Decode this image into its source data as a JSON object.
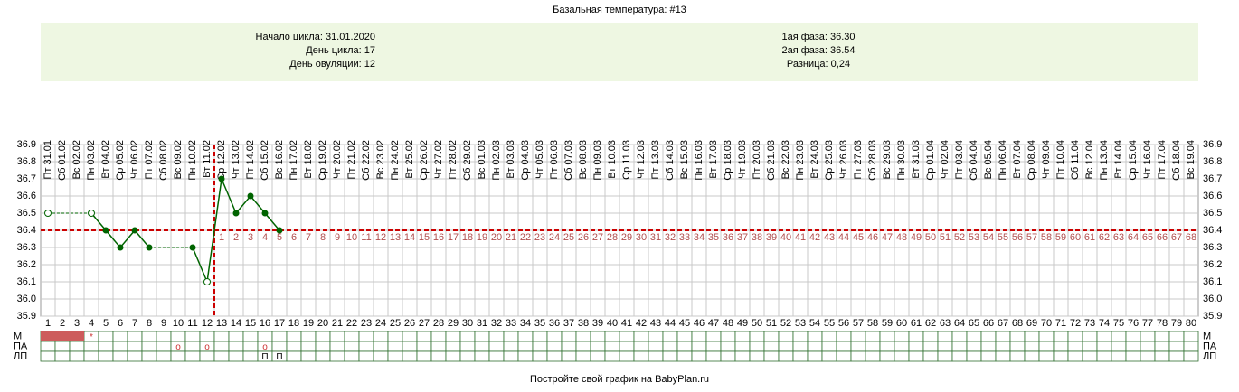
{
  "chart_data": {
    "type": "line",
    "title": "Базальная температура: #13",
    "info_left": [
      "Начало цикла: 31.01.2020",
      "День цикла: 17",
      "День овуляции: 12"
    ],
    "info_right": [
      "1ая фаза: 36.30",
      "2ая фаза: 36.54",
      "Разница: 0,24"
    ],
    "categories": [
      "Пт 31.01",
      "Сб 01.02",
      "Вс 02.02",
      "Пн 03.02",
      "Вт 04.02",
      "Ср 05.02",
      "Чт 06.02",
      "Пт 07.02",
      "Сб 08.02",
      "Вс 09.02",
      "Пн 10.02",
      "Вт 11.02",
      "Ср 12.02",
      "Чт 13.02",
      "Пт 14.02",
      "Сб 15.02",
      "Вс 16.02",
      "Пн 17.02",
      "Вт 18.02",
      "Ср 19.02",
      "Чт 20.02",
      "Пт 21.02",
      "Сб 22.02",
      "Вс 23.02",
      "Пн 24.02",
      "Вт 25.02",
      "Ср 26.02",
      "Чт 27.02",
      "Пт 28.02",
      "Сб 29.02",
      "Вс 01.03",
      "Пн 02.03",
      "Вт 03.03",
      "Ср 04.03",
      "Чт 05.03",
      "Пт 06.03",
      "Сб 07.03",
      "Вс 08.03",
      "Пн 09.03",
      "Вт 10.03",
      "Ср 11.03",
      "Чт 12.03",
      "Пт 13.03",
      "Сб 14.03",
      "Вс 15.03",
      "Пн 16.03",
      "Вт 17.03",
      "Ср 18.03",
      "Чт 19.03",
      "Пт 20.03",
      "Сб 21.03",
      "Вс 22.03",
      "Пн 23.03",
      "Вт 24.03",
      "Ср 25.03",
      "Чт 26.03",
      "Пт 27.03",
      "Сб 28.03",
      "Вс 29.03",
      "Пн 30.03",
      "Вт 31.03",
      "Ср 01.04",
      "Чт 02.04",
      "Пт 03.04",
      "Сб 04.04",
      "Вс 05.04",
      "Пн 06.04",
      "Вт 07.04",
      "Ср 08.04",
      "Чт 09.04",
      "Пт 10.04",
      "Сб 11.04",
      "Вс 12.04",
      "Пн 13.04",
      "Вт 14.04",
      "Ср 15.04",
      "Чт 16.04",
      "Пт 17.04",
      "Сб 18.04",
      "Вс 19.04"
    ],
    "x": [
      1,
      2,
      3,
      4,
      5,
      6,
      7,
      8,
      9,
      10,
      11,
      12,
      13,
      14,
      15,
      16,
      17,
      18,
      19,
      20,
      21,
      22,
      23,
      24,
      25,
      26,
      27,
      28,
      29,
      30,
      31,
      32,
      33,
      34,
      35,
      36,
      37,
      38,
      39,
      40,
      41,
      42,
      43,
      44,
      45,
      46,
      47,
      48,
      49,
      50,
      51,
      52,
      53,
      54,
      55,
      56,
      57,
      58,
      59,
      60,
      61,
      62,
      63,
      64,
      65,
      66,
      67,
      68,
      69,
      70,
      71,
      72,
      73,
      74,
      75,
      76,
      77,
      78,
      79,
      80
    ],
    "values": [
      36.5,
      null,
      null,
      36.5,
      36.4,
      36.3,
      36.4,
      36.3,
      null,
      null,
      36.3,
      36.1,
      36.7,
      36.5,
      36.6,
      36.5,
      36.4,
      null,
      null,
      null,
      null,
      null,
      null,
      null,
      null,
      null,
      null,
      null,
      null,
      null,
      null,
      null,
      null,
      null,
      null,
      null,
      null,
      null,
      null,
      null,
      null,
      null,
      null,
      null,
      null,
      null,
      null,
      null,
      null,
      null,
      null,
      null,
      null,
      null,
      null,
      null,
      null,
      null,
      null,
      null,
      null,
      null,
      null,
      null,
      null,
      null,
      null,
      null,
      null,
      null,
      null,
      null,
      null,
      null,
      null,
      null,
      null,
      null,
      null,
      null
    ],
    "hollow": [
      1,
      4,
      12
    ],
    "color": "#006400",
    "ylim": [
      35.9,
      36.9
    ],
    "yticks": [
      35.9,
      {
        "value": 36,
        "label": "36.0"
      },
      36.1,
      36.2,
      36.3,
      36.4,
      36.5,
      36.6,
      36.7,
      36.8,
      36.9
    ],
    "grid": true,
    "coverline": 36.4,
    "ovulation_day": 12,
    "post_ovulation_labels": [
      1,
      2,
      3,
      4,
      5,
      6,
      7,
      8,
      9,
      10,
      11,
      12,
      13,
      14,
      15,
      16,
      17,
      18,
      19,
      20,
      21,
      22,
      23,
      24,
      25,
      26,
      27,
      28,
      29,
      30,
      31,
      32,
      33,
      34,
      35,
      36,
      37,
      38,
      39,
      40,
      41,
      42,
      43,
      44,
      45,
      46,
      47,
      48,
      49,
      50,
      51,
      52,
      53,
      54,
      55,
      56,
      57,
      58,
      59,
      60,
      61,
      62,
      63,
      64,
      65,
      66,
      67,
      68
    ],
    "rows": [
      {
        "label": "М",
        "filled": [
          1,
          2,
          3
        ],
        "color": "#cd5c5c",
        "marks": [
          {
            "day": 4,
            "text": "*"
          }
        ]
      },
      {
        "label": "ПА",
        "marks": [
          {
            "day": 10,
            "text": "o"
          },
          {
            "day": 12,
            "text": "o"
          },
          {
            "day": 16,
            "text": "o"
          }
        ]
      },
      {
        "label": "ЛП",
        "marks": [
          {
            "day": 16,
            "text": "П"
          },
          {
            "day": 17,
            "text": "П"
          }
        ]
      }
    ],
    "footer": "Постройте свой график на BabyPlan.ru"
  }
}
